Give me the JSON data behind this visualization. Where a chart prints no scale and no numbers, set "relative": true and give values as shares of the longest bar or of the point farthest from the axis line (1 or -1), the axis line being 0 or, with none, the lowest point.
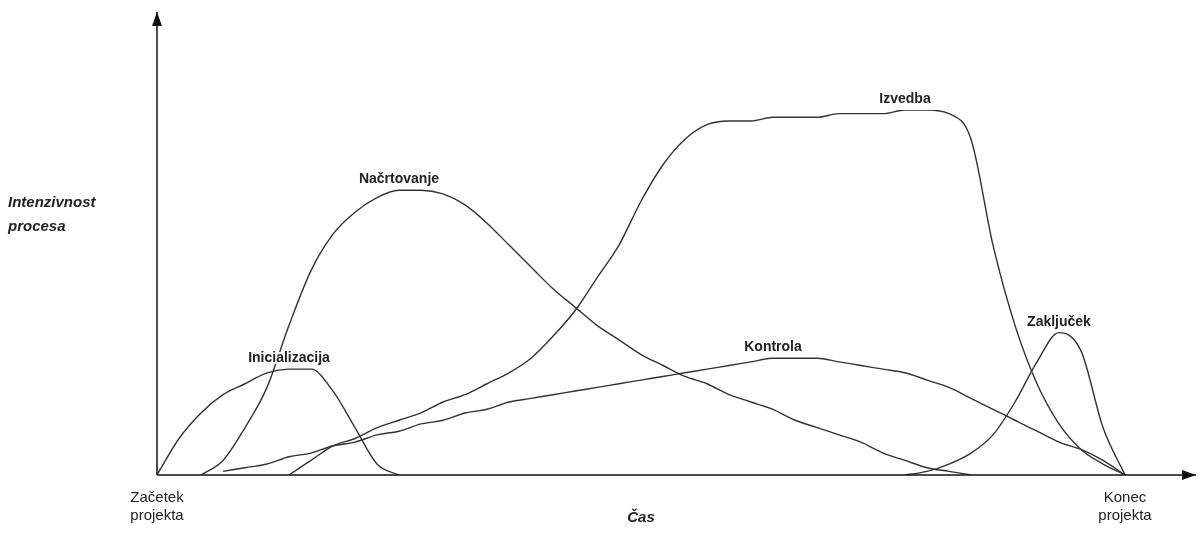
{
  "chart_data": {
    "type": "line",
    "relative": true,
    "xlabel": "Čas",
    "ylabel": "Intenzivnost procesa",
    "legend": false,
    "marker": "none",
    "line_style": "solid",
    "tick_labels": "x",
    "categories": [
      "Začetek projekta",
      null,
      null,
      null,
      null,
      null,
      null,
      null,
      null,
      null,
      null,
      null,
      null,
      null,
      null,
      null,
      null,
      null,
      null,
      null,
      null,
      null,
      null,
      null,
      null,
      null,
      null,
      null,
      null,
      null,
      null,
      null,
      null,
      null,
      null,
      null,
      null,
      null,
      null,
      null,
      null,
      null,
      null,
      null,
      "Konec projekta"
    ],
    "series": [
      {
        "name": "Inicializacija",
        "color": "#333333",
        "values": [
          0,
          0.1,
          0.17,
          0.22,
          0.25,
          0.28,
          0.29,
          0.29,
          0.23,
          0.13,
          0.03,
          0,
          null,
          null,
          null,
          null,
          null,
          null,
          null,
          null,
          null,
          null,
          null,
          null,
          null,
          null,
          null,
          null,
          null,
          null,
          null,
          null,
          null,
          null,
          null,
          null,
          null,
          null,
          null,
          null,
          null,
          null,
          null,
          null,
          null
        ]
      },
      {
        "name": "Načrtovanje",
        "color": "#333333",
        "values": [
          null,
          null,
          0,
          0.04,
          0.13,
          0.24,
          0.41,
          0.56,
          0.66,
          0.72,
          0.76,
          0.78,
          0.78,
          0.77,
          0.74,
          0.69,
          0.63,
          0.57,
          0.51,
          0.46,
          0.41,
          0.37,
          0.33,
          0.3,
          0.27,
          0.25,
          0.22,
          0.2,
          0.18,
          0.15,
          0.13,
          0.11,
          0.09,
          0.06,
          0.04,
          0.02,
          0.01,
          0,
          null,
          null,
          null,
          null,
          null,
          null,
          null
        ]
      },
      {
        "name": "Izvedba",
        "color": "#333333",
        "values": [
          null,
          null,
          null,
          null,
          null,
          null,
          0,
          0.04,
          0.08,
          0.1,
          0.13,
          0.15,
          0.17,
          0.2,
          0.22,
          0.25,
          0.28,
          0.32,
          0.38,
          0.45,
          0.54,
          0.63,
          0.75,
          0.85,
          0.92,
          0.96,
          0.97,
          0.97,
          0.98,
          0.98,
          0.98,
          0.99,
          0.99,
          0.99,
          1,
          1,
          0.99,
          0.92,
          0.63,
          0.41,
          0.25,
          0.14,
          0.07,
          0.03,
          0
        ]
      },
      {
        "name": "Kontrola",
        "color": "#333333",
        "values": [
          null,
          null,
          null,
          0.01,
          0.02,
          0.03,
          0.05,
          0.06,
          0.08,
          0.09,
          0.11,
          0.12,
          0.14,
          0.15,
          0.17,
          0.18,
          0.2,
          0.21,
          0.22,
          0.23,
          0.24,
          0.25,
          0.26,
          0.27,
          0.28,
          0.29,
          0.3,
          0.31,
          0.32,
          0.32,
          0.32,
          0.31,
          0.3,
          0.29,
          0.28,
          0.26,
          0.24,
          0.21,
          0.18,
          0.15,
          0.12,
          0.09,
          0.07,
          0.04,
          0
        ]
      },
      {
        "name": "Zaključek",
        "color": "#333333",
        "values": [
          null,
          null,
          null,
          null,
          null,
          null,
          null,
          null,
          null,
          null,
          null,
          null,
          null,
          null,
          null,
          null,
          null,
          null,
          null,
          null,
          null,
          null,
          null,
          null,
          null,
          null,
          null,
          null,
          null,
          null,
          null,
          null,
          null,
          null,
          0,
          0.01,
          0.03,
          0.06,
          0.11,
          0.2,
          0.31,
          0.39,
          0.34,
          0.13,
          0
        ]
      }
    ]
  }
}
